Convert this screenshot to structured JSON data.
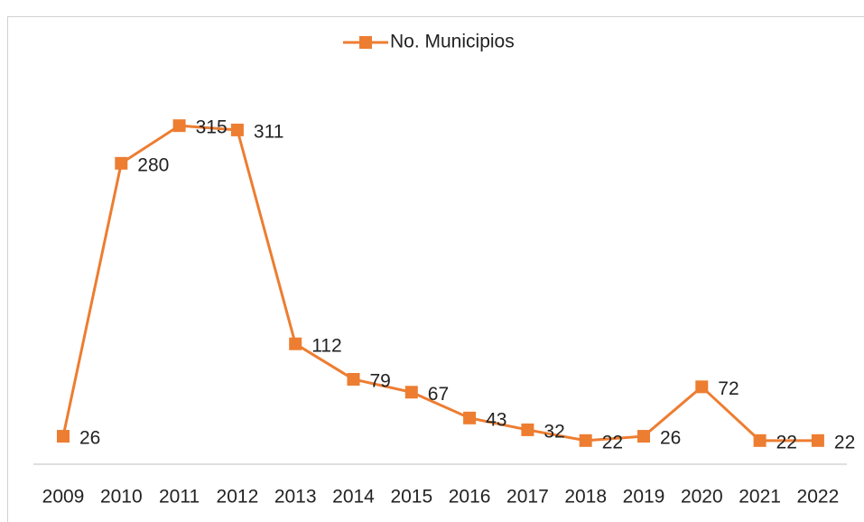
{
  "chart_data": {
    "type": "line",
    "categories": [
      "2009",
      "2010",
      "2011",
      "2012",
      "2013",
      "2014",
      "2015",
      "2016",
      "2017",
      "2018",
      "2019",
      "2020",
      "2021",
      "2022"
    ],
    "series": [
      {
        "name": "No. Municipios",
        "color": "#ed7d31",
        "values": [
          26,
          280,
          315,
          311,
          112,
          79,
          67,
          43,
          32,
          22,
          26,
          72,
          22,
          22
        ]
      }
    ],
    "ylim": [
      0,
      400
    ],
    "legend": "top"
  }
}
